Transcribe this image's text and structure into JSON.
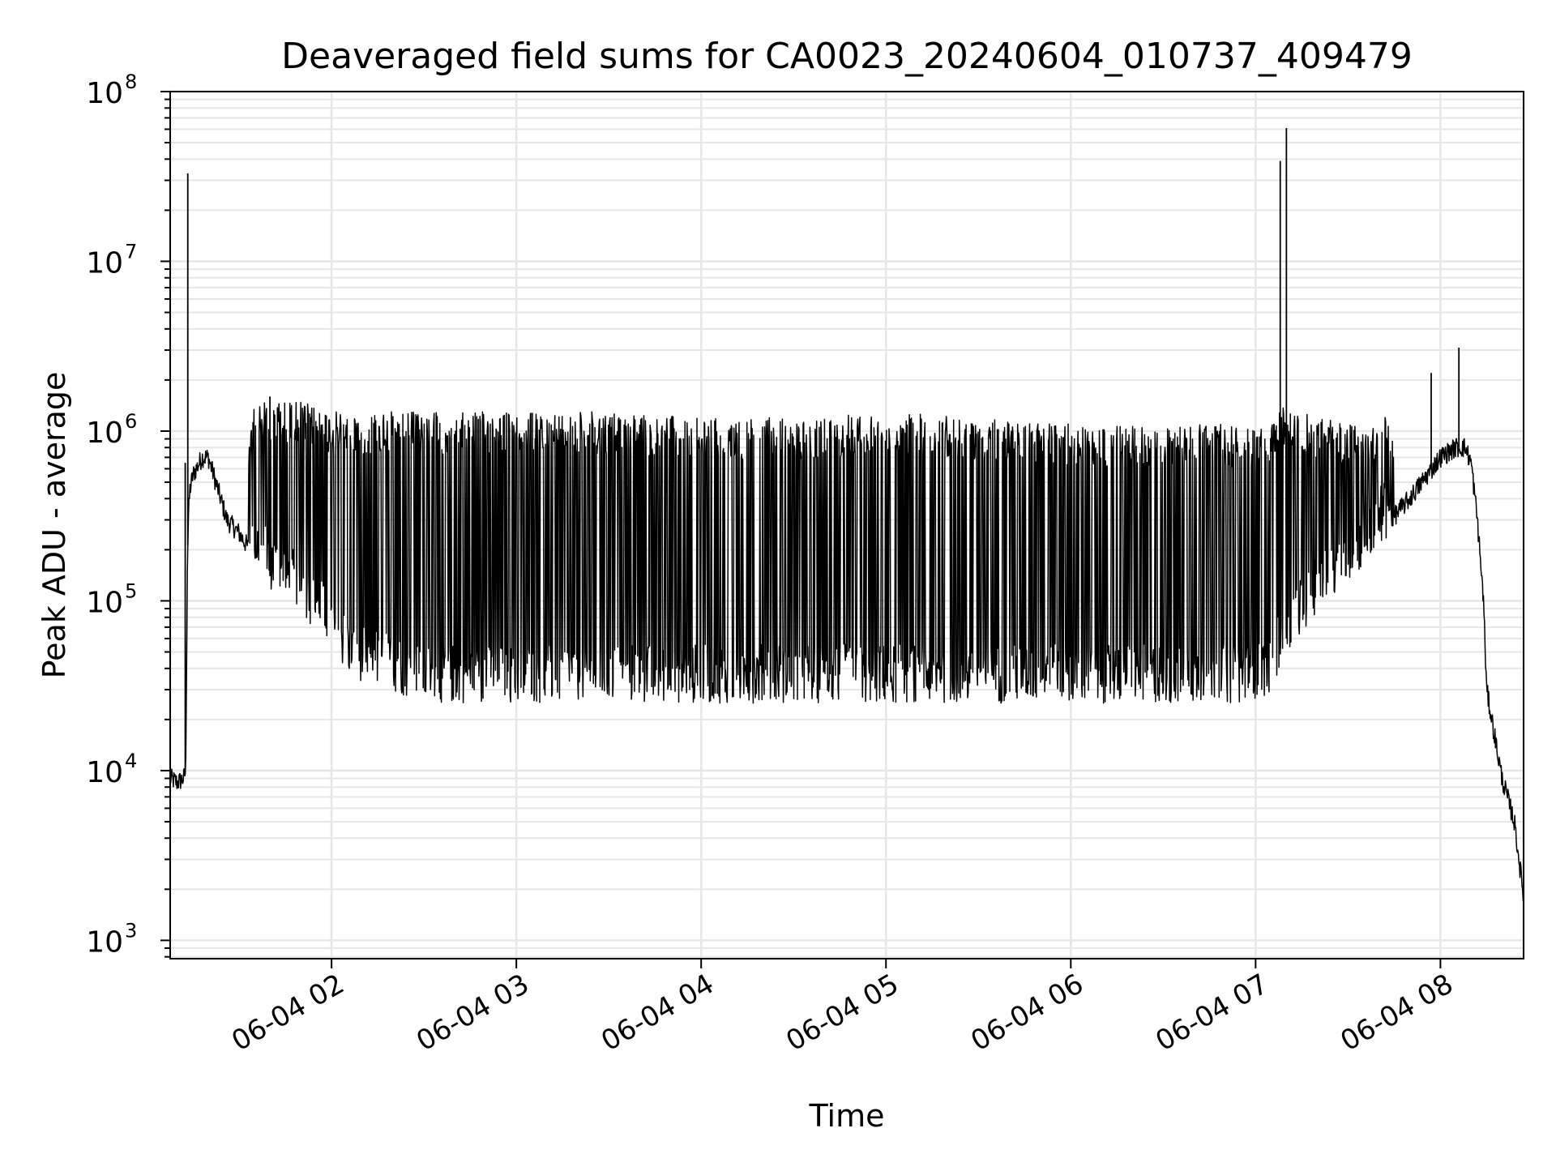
{
  "chart_data": {
    "type": "line",
    "title": "Deaveraged field sums for CA0023_20240604_010737_409479",
    "xlabel": "Time",
    "ylabel": "Peak ADU - average",
    "yscale": "log",
    "ylim": [
      780,
      100000000
    ],
    "xlim": [
      "2024-06-04 01:07:37",
      "2024-06-04 08:27:00"
    ],
    "x_ticks": [
      {
        "label": "06-04 02",
        "value": "2024-06-04 02:00"
      },
      {
        "label": "06-04 03",
        "value": "2024-06-04 03:00"
      },
      {
        "label": "06-04 04",
        "value": "2024-06-04 04:00"
      },
      {
        "label": "06-04 05",
        "value": "2024-06-04 05:00"
      },
      {
        "label": "06-04 06",
        "value": "2024-06-04 06:00"
      },
      {
        "label": "06-04 07",
        "value": "2024-06-04 07:00"
      },
      {
        "label": "06-04 08",
        "value": "2024-06-04 08:00"
      }
    ],
    "y_ticks": [
      {
        "base": "10",
        "exp": "3",
        "value": 1000
      },
      {
        "base": "10",
        "exp": "4",
        "value": 10000
      },
      {
        "base": "10",
        "exp": "5",
        "value": 100000
      },
      {
        "base": "10",
        "exp": "6",
        "value": 1000000
      },
      {
        "base": "10",
        "exp": "7",
        "value": 10000000
      },
      {
        "base": "10",
        "exp": "8",
        "value": 100000000
      }
    ],
    "grid": true,
    "line_color": "#000000",
    "grid_color": "#e6e6e6",
    "series": [
      {
        "x": [
          "2024-06-04 01:07:37",
          "2024-06-04 01:10",
          "2024-06-04 01:12",
          "2024-06-04 01:12:40",
          "2024-06-04 01:13:10",
          "2024-06-04 01:13:30",
          "2024-06-04 01:14",
          "2024-06-04 01:15",
          "2024-06-04 01:18",
          "2024-06-04 01:20",
          "2024-06-04 01:24",
          "2024-06-04 01:26",
          "2024-06-04 01:30",
          "2024-06-04 01:35",
          "2024-06-04 01:40",
          "2024-06-04 01:45",
          "2024-06-04 01:50",
          "2024-06-04 01:55",
          "2024-06-04 02:00",
          "2024-06-04 02:05",
          "2024-06-04 02:10",
          "2024-06-04 02:20",
          "2024-06-04 02:30",
          "2024-06-04 03:00",
          "2024-06-04 03:30",
          "2024-06-04 04:00",
          "2024-06-04 04:30",
          "2024-06-04 05:00",
          "2024-06-04 05:30",
          "2024-06-04 06:00",
          "2024-06-04 06:30",
          "2024-06-04 06:50",
          "2024-06-04 07:00",
          "2024-06-04 07:05",
          "2024-06-04 07:10",
          "2024-06-04 07:15",
          "2024-06-04 07:20",
          "2024-06-04 07:30",
          "2024-06-04 07:40",
          "2024-06-04 07:50",
          "2024-06-04 08:00",
          "2024-06-04 08:05",
          "2024-06-04 08:08",
          "2024-06-04 08:10",
          "2024-06-04 08:12",
          "2024-06-04 08:14",
          "2024-06-04 08:15",
          "2024-06-04 08:20",
          "2024-06-04 08:24",
          "2024-06-04 08:27"
        ],
        "y": [
          9000,
          8500,
          9000,
          10000,
          150000,
          300000,
          450000,
          550000,
          700000,
          700000,
          400000,
          300000,
          250000,
          180000,
          140000,
          120000,
          100000,
          80000,
          60000,
          45000,
          40000,
          35000,
          30000,
          30000,
          30000,
          30000,
          30000,
          30000,
          30000,
          30000,
          30000,
          30000,
          30000,
          35000,
          60000,
          80000,
          100000,
          150000,
          250000,
          400000,
          700000,
          800000,
          800000,
          650000,
          300000,
          100000,
          30000,
          9000,
          5000,
          1800
        ],
        "upper_envelope_y": [
          9000,
          9000,
          10000,
          12000,
          300000,
          500000,
          700000,
          800000,
          700000,
          700000,
          400000,
          300000,
          300000,
          1500000,
          1500000,
          1500000,
          1500000,
          1400000,
          1300000,
          1300000,
          1300000,
          1300000,
          1300000,
          1300000,
          1300000,
          1200000,
          1200000,
          1300000,
          1200000,
          1100000,
          1100000,
          1100000,
          1000000,
          1200000,
          1500000,
          1300000,
          1200000,
          1100000,
          1200000,
          1300000,
          1500000,
          1400000,
          1200000,
          700000,
          300000,
          100000,
          30000,
          9000,
          5000,
          1800
        ],
        "spikes": [
          {
            "x": "2024-06-04 01:13:20",
            "y": 33000000
          },
          {
            "x": "2024-06-04 07:08",
            "y": 39000000
          },
          {
            "x": "2024-06-04 07:10",
            "y": 61000000
          },
          {
            "x": "2024-06-04 08:06",
            "y": 3100000
          },
          {
            "x": "2024-06-04 07:57",
            "y": 2200000
          },
          {
            "x": "2024-06-04 01:40",
            "y": 1600000
          },
          {
            "x": "2024-06-04 01:12:30",
            "y": 650000
          }
        ]
      }
    ]
  }
}
